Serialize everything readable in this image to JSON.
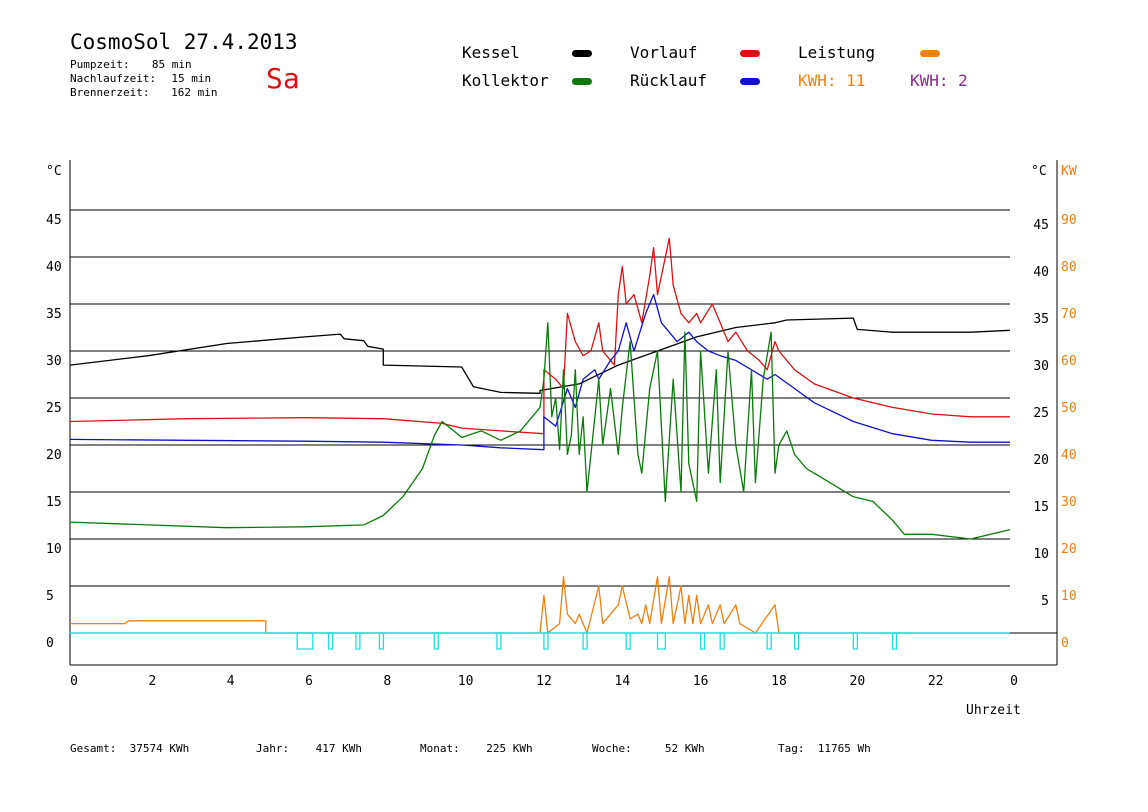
{
  "header": {
    "title": "CosmoSol 27.4.2013",
    "day": "Sa",
    "stats": [
      {
        "label": "Pumpzeit:",
        "value": "85 min"
      },
      {
        "label": "Nachlaufzeit:",
        "value": "15 min"
      },
      {
        "label": "Brennerzeit:",
        "value": "162 min"
      }
    ]
  },
  "legend": {
    "kessel": "Kessel",
    "kollektor": "Kollektor",
    "vorlauf": "Vorlauf",
    "ruecklauf": "Rücklauf",
    "leistung": "Leistung",
    "kwh1": "KWH: 11",
    "kwh2": "KWH: 2"
  },
  "colors": {
    "kessel": "#000000",
    "kollektor": "#0a7a0a",
    "vorlauf": "#dd1111",
    "ruecklauf": "#1111cc",
    "leistung": "#f08010",
    "pump": "#22dddd",
    "kwh2": "#8a2a8a"
  },
  "footer": [
    {
      "label": "Gesamt:",
      "value": "37574 KWh"
    },
    {
      "label": "Jahr:",
      "value": "417 KWh"
    },
    {
      "label": "Monat:",
      "value": "225 KWh"
    },
    {
      "label": "Woche:",
      "value": "52 KWh"
    },
    {
      "label": "Tag:",
      "value": "11765 Wh"
    }
  ],
  "chart_data": {
    "type": "line",
    "xlabel": "Uhrzeit",
    "ylabel_left": "°C",
    "ylabel_right_temp": "°C",
    "ylabel_right_kw": "KW",
    "x_range": [
      0,
      24
    ],
    "y_range": [
      0,
      50
    ],
    "kw_range": [
      0,
      100
    ],
    "x_ticks": [
      "0",
      "2",
      "4",
      "6",
      "8",
      "10",
      "12",
      "14",
      "16",
      "18",
      "20",
      "22",
      "0"
    ],
    "y_ticks_left": [
      "0",
      "5",
      "10",
      "15",
      "20",
      "25",
      "30",
      "35",
      "40",
      "45"
    ],
    "y_ticks_right": [
      "5",
      "10",
      "15",
      "20",
      "25",
      "30",
      "35",
      "40",
      "45"
    ],
    "kw_ticks": [
      "0",
      "10",
      "20",
      "30",
      "40",
      "50",
      "60",
      "70",
      "80",
      "90"
    ],
    "grid": true,
    "legend_position": "top",
    "series": [
      {
        "name": "Kessel",
        "color_key": "kessel",
        "points": [
          [
            0,
            28.5
          ],
          [
            2,
            29.5
          ],
          [
            4,
            30.8
          ],
          [
            6,
            31.5
          ],
          [
            6.9,
            31.8
          ],
          [
            7,
            31.3
          ],
          [
            7.5,
            31.1
          ],
          [
            7.6,
            30.5
          ],
          [
            8,
            30.2
          ],
          [
            8,
            28.5
          ],
          [
            10,
            28.3
          ],
          [
            10.3,
            26.2
          ],
          [
            11,
            25.6
          ],
          [
            12,
            25.5
          ],
          [
            12,
            25.8
          ],
          [
            13,
            26.5
          ],
          [
            14,
            28.5
          ],
          [
            15,
            30
          ],
          [
            16,
            31.5
          ],
          [
            17,
            32.5
          ],
          [
            18,
            33
          ],
          [
            18.3,
            33.3
          ],
          [
            20,
            33.5
          ],
          [
            20.1,
            32.3
          ],
          [
            21,
            32
          ],
          [
            23,
            32
          ],
          [
            24,
            32.2
          ]
        ]
      },
      {
        "name": "Vorlauf",
        "color_key": "vorlauf",
        "points": [
          [
            0,
            22.5
          ],
          [
            3,
            22.8
          ],
          [
            6,
            22.9
          ],
          [
            8,
            22.8
          ],
          [
            9.5,
            22.3
          ],
          [
            10,
            21.8
          ],
          [
            11,
            21.5
          ],
          [
            12.1,
            21.2
          ],
          [
            12.1,
            28
          ],
          [
            12.4,
            27
          ],
          [
            12.6,
            26
          ],
          [
            12.7,
            34
          ],
          [
            12.9,
            31
          ],
          [
            13.1,
            29.5
          ],
          [
            13.3,
            30
          ],
          [
            13.5,
            33
          ],
          [
            13.6,
            30
          ],
          [
            13.9,
            28.5
          ],
          [
            14,
            36
          ],
          [
            14.1,
            39
          ],
          [
            14.2,
            35
          ],
          [
            14.4,
            36
          ],
          [
            14.6,
            33
          ],
          [
            14.8,
            38
          ],
          [
            14.9,
            41
          ],
          [
            15,
            36
          ],
          [
            15.3,
            42
          ],
          [
            15.4,
            37
          ],
          [
            15.6,
            34
          ],
          [
            15.8,
            33
          ],
          [
            16,
            34
          ],
          [
            16.1,
            33
          ],
          [
            16.4,
            35
          ],
          [
            16.6,
            33
          ],
          [
            16.8,
            31
          ],
          [
            17,
            32
          ],
          [
            17.3,
            30
          ],
          [
            17.6,
            29
          ],
          [
            17.8,
            28
          ],
          [
            18,
            31
          ],
          [
            18.1,
            30
          ],
          [
            18.5,
            28
          ],
          [
            19,
            26.5
          ],
          [
            20,
            25
          ],
          [
            21,
            24
          ],
          [
            22,
            23.3
          ],
          [
            23,
            23
          ],
          [
            24,
            23
          ]
        ]
      },
      {
        "name": "Rücklauf",
        "color_key": "ruecklauf",
        "points": [
          [
            0,
            20.6
          ],
          [
            3,
            20.5
          ],
          [
            6,
            20.4
          ],
          [
            8,
            20.3
          ],
          [
            10,
            20
          ],
          [
            11,
            19.7
          ],
          [
            12.1,
            19.5
          ],
          [
            12.1,
            23
          ],
          [
            12.4,
            22
          ],
          [
            12.7,
            26
          ],
          [
            12.9,
            24
          ],
          [
            13.1,
            27
          ],
          [
            13.4,
            28
          ],
          [
            13.5,
            27
          ],
          [
            13.8,
            29
          ],
          [
            14,
            30
          ],
          [
            14.2,
            33
          ],
          [
            14.4,
            30
          ],
          [
            14.7,
            34
          ],
          [
            14.9,
            36
          ],
          [
            15.1,
            33
          ],
          [
            15.5,
            31
          ],
          [
            15.8,
            32
          ],
          [
            16,
            31
          ],
          [
            16.3,
            30
          ],
          [
            16.6,
            29.5
          ],
          [
            17,
            29
          ],
          [
            17.4,
            28
          ],
          [
            17.8,
            27
          ],
          [
            18,
            27.5
          ],
          [
            18.5,
            26
          ],
          [
            19,
            24.5
          ],
          [
            20,
            22.5
          ],
          [
            21,
            21.2
          ],
          [
            22,
            20.5
          ],
          [
            23,
            20.3
          ],
          [
            24,
            20.3
          ]
        ]
      },
      {
        "name": "Kollektor",
        "color_key": "kollektor",
        "points": [
          [
            0,
            11.8
          ],
          [
            2,
            11.5
          ],
          [
            4,
            11.2
          ],
          [
            6,
            11.3
          ],
          [
            7.5,
            11.5
          ],
          [
            8,
            12.5
          ],
          [
            8.5,
            14.5
          ],
          [
            9,
            17.5
          ],
          [
            9.3,
            21
          ],
          [
            9.5,
            22.5
          ],
          [
            9.8,
            21.5
          ],
          [
            10,
            20.8
          ],
          [
            10.5,
            21.5
          ],
          [
            11,
            20.5
          ],
          [
            11.5,
            21.5
          ],
          [
            12,
            24
          ],
          [
            12.1,
            27
          ],
          [
            12.2,
            33
          ],
          [
            12.3,
            23
          ],
          [
            12.4,
            25
          ],
          [
            12.5,
            19.5
          ],
          [
            12.6,
            28
          ],
          [
            12.7,
            19
          ],
          [
            12.8,
            21
          ],
          [
            12.9,
            28
          ],
          [
            13,
            19
          ],
          [
            13.1,
            23
          ],
          [
            13.2,
            15
          ],
          [
            13.5,
            27
          ],
          [
            13.6,
            20
          ],
          [
            13.8,
            26
          ],
          [
            14,
            19
          ],
          [
            14.1,
            24
          ],
          [
            14.3,
            31
          ],
          [
            14.5,
            19
          ],
          [
            14.6,
            17
          ],
          [
            14.8,
            26
          ],
          [
            15,
            30
          ],
          [
            15.1,
            22
          ],
          [
            15.2,
            14
          ],
          [
            15.4,
            27
          ],
          [
            15.5,
            21
          ],
          [
            15.6,
            15
          ],
          [
            15.7,
            32
          ],
          [
            15.8,
            18
          ],
          [
            16,
            14
          ],
          [
            16.1,
            30
          ],
          [
            16.3,
            17
          ],
          [
            16.5,
            28
          ],
          [
            16.6,
            16
          ],
          [
            16.8,
            30
          ],
          [
            17,
            20
          ],
          [
            17.2,
            15
          ],
          [
            17.4,
            28
          ],
          [
            17.5,
            16
          ],
          [
            17.7,
            27
          ],
          [
            17.9,
            32
          ],
          [
            18,
            17
          ],
          [
            18.1,
            20
          ],
          [
            18.3,
            21.5
          ],
          [
            18.5,
            19
          ],
          [
            18.8,
            17.5
          ],
          [
            19,
            17
          ],
          [
            20,
            14.5
          ],
          [
            20.5,
            14
          ],
          [
            21,
            12
          ],
          [
            21.3,
            10.5
          ],
          [
            22,
            10.5
          ],
          [
            23,
            10
          ],
          [
            24,
            11
          ]
        ]
      },
      {
        "name": "Leistung",
        "color_key": "leistung",
        "points": [
          [
            0,
            1
          ],
          [
            1.4,
            1
          ],
          [
            1.5,
            1.3
          ],
          [
            3,
            1.3
          ],
          [
            3.8,
            1.3
          ],
          [
            4,
            1.3
          ],
          [
            5,
            1.3
          ],
          [
            5,
            0
          ],
          [
            12,
            0
          ],
          [
            12.1,
            4
          ],
          [
            12.2,
            0
          ],
          [
            12.5,
            1
          ],
          [
            12.6,
            6
          ],
          [
            12.7,
            2
          ],
          [
            12.9,
            1
          ],
          [
            13,
            2
          ],
          [
            13.2,
            0
          ],
          [
            13.5,
            5
          ],
          [
            13.6,
            1
          ],
          [
            14,
            3
          ],
          [
            14.1,
            5
          ],
          [
            14.3,
            1.5
          ],
          [
            14.5,
            2
          ],
          [
            14.6,
            1
          ],
          [
            14.7,
            3
          ],
          [
            14.8,
            1
          ],
          [
            15,
            6
          ],
          [
            15.1,
            1
          ],
          [
            15.3,
            6
          ],
          [
            15.4,
            1
          ],
          [
            15.6,
            5
          ],
          [
            15.7,
            1
          ],
          [
            15.8,
            4
          ],
          [
            15.9,
            1
          ],
          [
            16,
            4
          ],
          [
            16.1,
            1
          ],
          [
            16.3,
            3
          ],
          [
            16.4,
            1
          ],
          [
            16.6,
            3
          ],
          [
            16.7,
            1
          ],
          [
            17,
            3
          ],
          [
            17.1,
            1
          ],
          [
            17.5,
            0
          ],
          [
            18,
            3
          ],
          [
            18.1,
            0
          ],
          [
            24,
            0
          ]
        ]
      },
      {
        "name": "Pumpe",
        "color_key": "pump",
        "segments": [
          [
            5.8,
            6.2
          ],
          [
            6.6,
            6.7
          ],
          [
            7.3,
            7.4
          ],
          [
            7.9,
            8.0
          ],
          [
            9.3,
            9.4
          ],
          [
            10.9,
            11.0
          ],
          [
            12.1,
            12.2
          ],
          [
            13.1,
            13.2
          ],
          [
            14.2,
            14.3
          ],
          [
            15.0,
            15.2
          ],
          [
            16.1,
            16.2
          ],
          [
            16.6,
            16.7
          ],
          [
            17.8,
            17.9
          ],
          [
            18.5,
            18.6
          ],
          [
            20.0,
            20.1
          ],
          [
            21.0,
            21.1
          ]
        ]
      }
    ]
  }
}
